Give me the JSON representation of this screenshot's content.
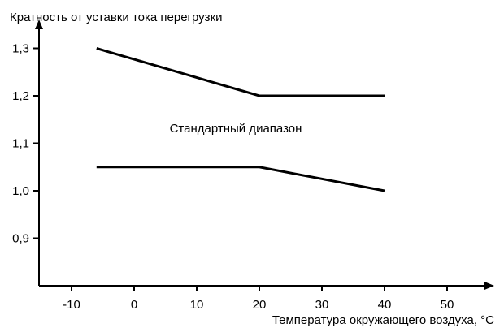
{
  "chart_data": {
    "type": "line",
    "title": "",
    "ylabel": "Кратность от уставки тока перегрузки",
    "xlabel": "Температура окружающего воздуха, °С",
    "xlim": [
      -15,
      55
    ],
    "ylim": [
      0.8,
      1.35
    ],
    "xticks": [
      -10,
      0,
      10,
      20,
      30,
      40,
      50
    ],
    "xtick_labels": [
      "-10",
      "0",
      "10",
      "20",
      "30",
      "40",
      "50"
    ],
    "yticks": [
      0.9,
      1.0,
      1.1,
      1.2,
      1.3
    ],
    "ytick_labels": [
      "0,9",
      "1,0",
      "1,1",
      "1,2",
      "1,3"
    ],
    "grid": false,
    "annotation": "Стандартный диапазон",
    "series": [
      {
        "points": [
          [
            -6,
            1.3
          ],
          [
            20,
            1.2
          ],
          [
            40,
            1.2
          ]
        ]
      },
      {
        "points": [
          [
            -6,
            1.05
          ],
          [
            20,
            1.05
          ],
          [
            40,
            1.0
          ]
        ]
      }
    ]
  }
}
